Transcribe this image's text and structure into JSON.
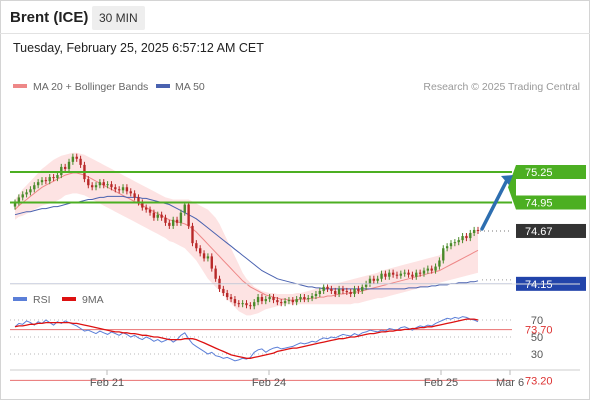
{
  "header": {
    "instrument": "Brent (ICE)",
    "timeframe": "30 MIN",
    "timestamp": "Tuesday, February 25, 2025 6:57:12 AM CET"
  },
  "legend": {
    "ma20": "MA 20 + Bollinger Bands",
    "ma50": "MA 50",
    "credit": "Research © 2025 Trading Central",
    "rsi": "RSI",
    "ma9": "9MA"
  },
  "colors": {
    "ma20": "#ee8888",
    "band_fill": "#fde3e3",
    "ma50": "#4a62b0",
    "resistance": "#4caf22",
    "pivot": "#2244aa",
    "support": "#e87070",
    "candle_up": "#4a8a2a",
    "candle_down": "#b82828",
    "arrow": "#2d6eb0",
    "last": "#333333",
    "rsi": "#5b7fd8",
    "ma9": "#dd1111"
  },
  "chart_data": [
    {
      "type": "candlestick",
      "title": "Brent (ICE)",
      "timeframe": "30 MIN",
      "ylim": [
        73.0,
        75.4
      ],
      "x_ticks": [
        "Feb 21",
        "Feb 24",
        "Feb 25",
        "Mar 6"
      ],
      "close": [
        74.95,
        75.0,
        75.03,
        75.05,
        75.08,
        75.12,
        75.15,
        75.17,
        75.16,
        75.2,
        75.19,
        75.22,
        75.3,
        75.28,
        75.35,
        75.4,
        75.38,
        75.32,
        75.18,
        75.12,
        75.1,
        75.12,
        75.15,
        75.12,
        75.13,
        75.1,
        75.08,
        75.07,
        75.1,
        75.06,
        75.04,
        75.0,
        74.95,
        74.9,
        74.88,
        74.85,
        74.8,
        74.83,
        74.8,
        74.75,
        74.72,
        74.78,
        74.75,
        74.85,
        74.93,
        74.72,
        74.55,
        74.5,
        74.45,
        74.4,
        74.42,
        74.3,
        74.2,
        74.1,
        74.06,
        74.02,
        74.0,
        73.96,
        73.95,
        73.96,
        73.94,
        73.93,
        73.97,
        74.02,
        73.98,
        74.0,
        74.02,
        73.99,
        73.97,
        73.96,
        73.98,
        73.99,
        73.97,
        74.0,
        74.02,
        74.0,
        74.01,
        74.03,
        74.05,
        74.08,
        74.12,
        74.1,
        74.08,
        74.05,
        74.1,
        74.08,
        74.07,
        74.05,
        74.1,
        74.08,
        74.12,
        74.15,
        74.2,
        74.18,
        74.2,
        74.25,
        74.22,
        74.26,
        74.24,
        74.23,
        74.25,
        74.26,
        74.24,
        74.22,
        74.26,
        74.25,
        74.28,
        74.3,
        74.28,
        74.32,
        74.38,
        74.5,
        74.52,
        74.55,
        74.56,
        74.58,
        74.62,
        74.6,
        74.65,
        74.68,
        74.67
      ],
      "ma20": [
        74.88,
        74.92,
        74.95,
        74.98,
        75.01,
        75.04,
        75.07,
        75.1,
        75.12,
        75.14,
        75.16,
        75.18,
        75.2,
        75.22,
        75.23,
        75.24,
        75.24,
        75.23,
        75.22,
        75.2,
        75.18,
        75.16,
        75.14,
        75.12,
        75.1,
        75.08,
        75.06,
        75.04,
        75.02,
        75.0,
        74.98,
        74.96,
        74.94,
        74.92,
        74.9,
        74.88,
        74.86,
        74.84,
        74.82,
        74.8,
        74.78,
        74.77,
        74.76,
        74.75,
        74.74,
        74.72,
        74.69,
        74.66,
        74.62,
        74.58,
        74.54,
        74.5,
        74.46,
        74.42,
        74.38,
        74.34,
        74.3,
        74.26,
        74.22,
        74.18,
        74.15,
        74.12,
        74.1,
        74.08,
        74.06,
        74.04,
        74.03,
        74.02,
        74.01,
        74.0,
        74.0,
        73.99,
        73.99,
        73.99,
        74.0,
        74.0,
        74.0,
        74.01,
        74.01,
        74.02,
        74.02,
        74.03,
        74.03,
        74.04,
        74.05,
        74.05,
        74.06,
        74.06,
        74.07,
        74.07,
        74.08,
        74.09,
        74.1,
        74.11,
        74.12,
        74.13,
        74.14,
        74.15,
        74.16,
        74.17,
        74.18,
        74.19,
        74.2,
        74.21,
        74.22,
        74.23,
        74.24,
        74.25,
        74.26,
        74.27,
        74.28,
        74.3,
        74.32,
        74.34,
        74.36,
        74.38,
        74.4,
        74.42,
        74.44,
        74.46,
        74.48
      ],
      "bb_upper": [
        74.98,
        75.03,
        75.08,
        75.12,
        75.16,
        75.2,
        75.24,
        75.28,
        75.31,
        75.34,
        75.37,
        75.39,
        75.41,
        75.42,
        75.43,
        75.44,
        75.44,
        75.43,
        75.42,
        75.4,
        75.38,
        75.36,
        75.34,
        75.32,
        75.3,
        75.28,
        75.26,
        75.24,
        75.22,
        75.2,
        75.18,
        75.16,
        75.14,
        75.12,
        75.1,
        75.08,
        75.06,
        75.04,
        75.02,
        75.0,
        74.99,
        74.98,
        74.98,
        74.98,
        74.98,
        74.98,
        74.96,
        74.94,
        74.92,
        74.9,
        74.88,
        74.84,
        74.8,
        74.74,
        74.66,
        74.58,
        74.5,
        74.42,
        74.34,
        74.26,
        74.2,
        74.16,
        74.12,
        74.1,
        74.08,
        74.07,
        74.06,
        74.06,
        74.05,
        74.05,
        74.05,
        74.05,
        74.05,
        74.06,
        74.06,
        74.07,
        74.08,
        74.09,
        74.1,
        74.11,
        74.12,
        74.13,
        74.14,
        74.15,
        74.16,
        74.17,
        74.18,
        74.19,
        74.2,
        74.21,
        74.22,
        74.23,
        74.24,
        74.25,
        74.26,
        74.28,
        74.29,
        74.3,
        74.31,
        74.32,
        74.33,
        74.34,
        74.35,
        74.36,
        74.37,
        74.38,
        74.39,
        74.4,
        74.41,
        74.42,
        74.43,
        74.46,
        74.49,
        74.52,
        74.55,
        74.58,
        74.61,
        74.63,
        74.65,
        74.67,
        74.68
      ],
      "bb_lower": [
        74.78,
        74.81,
        74.82,
        74.84,
        74.86,
        74.88,
        74.9,
        74.92,
        74.93,
        74.94,
        74.95,
        74.97,
        74.99,
        75.02,
        75.03,
        75.04,
        75.04,
        75.03,
        75.02,
        75.0,
        74.98,
        74.96,
        74.94,
        74.92,
        74.9,
        74.88,
        74.86,
        74.84,
        74.82,
        74.8,
        74.78,
        74.76,
        74.74,
        74.72,
        74.7,
        74.68,
        74.66,
        74.64,
        74.62,
        74.6,
        74.57,
        74.56,
        74.54,
        74.52,
        74.5,
        74.46,
        74.42,
        74.38,
        74.32,
        74.26,
        74.2,
        74.16,
        74.12,
        74.08,
        74.04,
        74.0,
        73.96,
        73.92,
        73.88,
        73.86,
        73.84,
        73.84,
        73.85,
        73.86,
        73.88,
        73.9,
        73.91,
        73.92,
        73.93,
        73.94,
        73.95,
        73.95,
        73.95,
        73.95,
        73.95,
        73.95,
        73.95,
        73.95,
        73.95,
        73.95,
        73.95,
        73.95,
        73.95,
        73.95,
        73.95,
        73.95,
        73.95,
        73.95,
        73.96,
        73.96,
        73.97,
        73.98,
        73.99,
        74.0,
        74.01,
        74.01,
        74.02,
        74.03,
        74.04,
        74.05,
        74.06,
        74.07,
        74.08,
        74.09,
        74.1,
        74.11,
        74.12,
        74.13,
        74.14,
        74.15,
        74.16,
        74.17,
        74.18,
        74.19,
        74.2,
        74.21,
        74.22,
        74.23,
        74.24,
        74.25,
        74.26
      ],
      "ma50": [
        74.83,
        74.84,
        74.85,
        74.86,
        74.86,
        74.87,
        74.88,
        74.89,
        74.89,
        74.9,
        74.91,
        74.91,
        74.92,
        74.93,
        74.94,
        74.95,
        74.95,
        74.96,
        74.97,
        74.98,
        74.98,
        74.99,
        75.0,
        75.0,
        75.01,
        75.01,
        75.01,
        75.01,
        75.01,
        75.0,
        75.0,
        75.0,
        75.0,
        74.99,
        74.99,
        74.98,
        74.97,
        74.96,
        74.95,
        74.94,
        74.93,
        74.91,
        74.89,
        74.87,
        74.85,
        74.83,
        74.81,
        74.79,
        74.76,
        74.73,
        74.7,
        74.67,
        74.64,
        74.61,
        74.58,
        74.55,
        74.52,
        74.49,
        74.46,
        74.43,
        74.4,
        74.37,
        74.34,
        74.31,
        74.28,
        74.26,
        74.24,
        74.22,
        74.2,
        74.19,
        74.18,
        74.17,
        74.16,
        74.15,
        74.14,
        74.13,
        74.12,
        74.12,
        74.11,
        74.11,
        74.1,
        74.1,
        74.1,
        74.1,
        74.1,
        74.1,
        74.1,
        74.1,
        74.1,
        74.1,
        74.1,
        74.1,
        74.1,
        74.1,
        74.1,
        74.1,
        74.1,
        74.1,
        74.1,
        74.1,
        74.1,
        74.1,
        74.11,
        74.11,
        74.11,
        74.12,
        74.12,
        74.12,
        74.13,
        74.13,
        74.14,
        74.14,
        74.14,
        74.15,
        74.15,
        74.16,
        74.16,
        74.16,
        74.17,
        74.17,
        74.18
      ],
      "levels": [
        {
          "value": 75.25,
          "label": "75.25",
          "kind": "resistance"
        },
        {
          "value": 74.95,
          "label": "74.95",
          "kind": "resistance"
        },
        {
          "value": 74.15,
          "label": "74.15",
          "kind": "pivot"
        },
        {
          "value": 73.7,
          "label": "73.70",
          "kind": "support"
        },
        {
          "value": 73.2,
          "label": "73.20",
          "kind": "support"
        }
      ],
      "last_price": {
        "value": 74.67,
        "label": "74.67"
      },
      "arrow": {
        "from": 74.67,
        "to": 75.22,
        "direction": "up"
      }
    },
    {
      "type": "line",
      "panel": "RSI",
      "ylim": [
        15,
        85
      ],
      "y_ticks": [
        70,
        50,
        30
      ],
      "rsi": [
        62,
        66,
        65,
        69,
        67,
        64,
        68,
        66,
        70,
        67,
        64,
        68,
        66,
        69,
        67,
        65,
        63,
        60,
        57,
        58,
        56,
        54,
        57,
        55,
        53,
        56,
        54,
        52,
        55,
        53,
        50,
        52,
        49,
        47,
        50,
        48,
        45,
        47,
        44,
        46,
        48,
        44,
        47,
        52,
        55,
        48,
        42,
        39,
        36,
        33,
        30,
        32,
        28,
        27,
        25,
        26,
        24,
        22,
        23,
        25,
        24,
        26,
        32,
        35,
        36,
        32,
        35,
        37,
        38,
        36,
        37,
        38,
        39,
        41,
        43,
        42,
        43,
        45,
        44,
        47,
        49,
        48,
        50,
        49,
        51,
        53,
        52,
        51,
        54,
        52,
        55,
        56,
        58,
        57,
        56,
        58,
        57,
        60,
        59,
        58,
        61,
        62,
        60,
        58,
        61,
        63,
        62,
        64,
        63,
        66,
        68,
        70,
        72,
        71,
        73,
        72,
        74,
        73,
        71,
        70,
        68
      ],
      "ma9": [
        62,
        63,
        63,
        64,
        65,
        65,
        66,
        66,
        67,
        67,
        67,
        67,
        67,
        67,
        67,
        66,
        66,
        65,
        64,
        63,
        62,
        61,
        60,
        59,
        58,
        57,
        56,
        56,
        55,
        55,
        54,
        54,
        53,
        52,
        52,
        51,
        50,
        50,
        49,
        48,
        47,
        47,
        47,
        47,
        48,
        48,
        48,
        47,
        45,
        43,
        41,
        39,
        37,
        35,
        33,
        31,
        29,
        28,
        27,
        26,
        25,
        25,
        26,
        27,
        28,
        29,
        30,
        31,
        33,
        34,
        35,
        36,
        37,
        37,
        38,
        39,
        40,
        41,
        42,
        43,
        44,
        45,
        46,
        47,
        48,
        48,
        49,
        50,
        50,
        51,
        52,
        53,
        54,
        54,
        55,
        56,
        56,
        57,
        57,
        58,
        58,
        59,
        59,
        60,
        60,
        61,
        61,
        62,
        62,
        63,
        64,
        65,
        66,
        67,
        68,
        69,
        70,
        71,
        71,
        71,
        70
      ]
    }
  ]
}
